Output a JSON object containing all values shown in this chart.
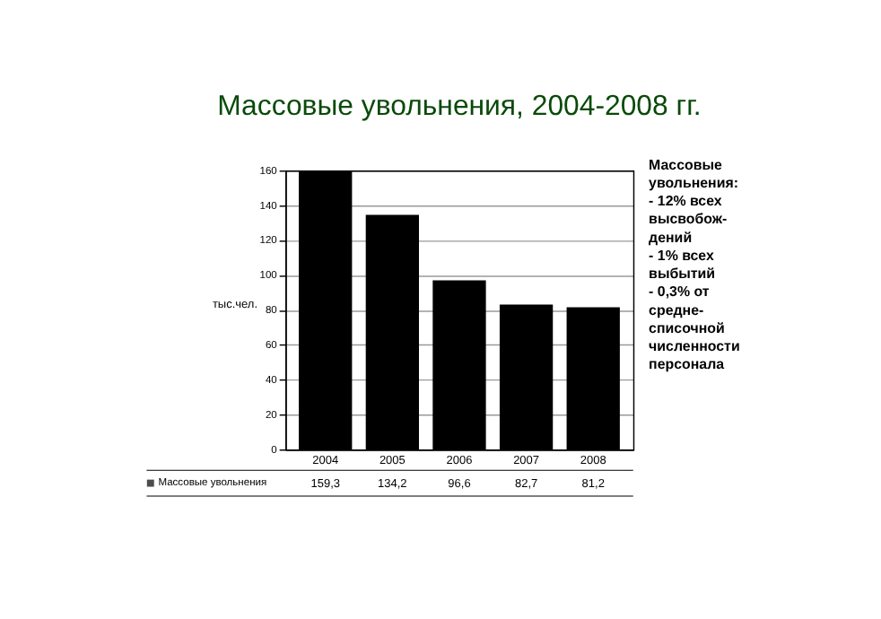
{
  "chart_data": {
    "type": "bar",
    "title": "Массовые увольнения, 2004-2008 гг.",
    "ylabel": "тыс.чел.",
    "categories": [
      "2004",
      "2005",
      "2006",
      "2007",
      "2008"
    ],
    "series": [
      {
        "name": "Массовые увольнения",
        "color": "#000000",
        "values": [
          159.3,
          134.2,
          96.6,
          82.7,
          81.2
        ],
        "value_labels": [
          "159,3",
          "134,2",
          "96,6",
          "82,7",
          "81,2"
        ]
      }
    ],
    "ylim": [
      0,
      160
    ],
    "yticks": [
      0,
      20,
      40,
      60,
      80,
      100,
      120,
      140,
      160
    ],
    "grid": "y",
    "legend": "bottom",
    "annotations": [
      "Массовые\nувольнения:\n- 12% всех\nвысвобож-\nдений\n- 1% всех\nвыбытий\n- 0,3% от\nсредне-\nсписочной\nчисленности\nперсонала"
    ]
  }
}
